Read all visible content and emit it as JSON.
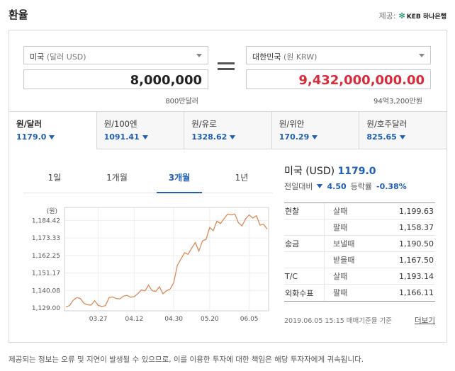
{
  "title": "환율",
  "provider": {
    "label": "제공:",
    "name": "KEB 하나은행"
  },
  "converter": {
    "from_currency": "미국",
    "from_unit": "(달러 USD)",
    "from_amount": "8,000,000",
    "from_hint": "800만달러",
    "to_currency": "대한민국",
    "to_unit": "(원 KRW)",
    "to_amount": "9,432,000,000.00",
    "to_hint": "94억3,200만원"
  },
  "rate_tabs": [
    {
      "label": "원/달러",
      "value": "1179.0"
    },
    {
      "label": "원/100엔",
      "value": "1091.41"
    },
    {
      "label": "원/유로",
      "value": "1328.62"
    },
    {
      "label": "원/위안",
      "value": "170.29"
    },
    {
      "label": "원/호주달러",
      "value": "825.65"
    }
  ],
  "period_tabs": [
    "1일",
    "1개월",
    "3개월",
    "1년"
  ],
  "active_period": "3개월",
  "info": {
    "country": "미국",
    "code": "(USD)",
    "rate": "1179.0",
    "change_label": "전일대비",
    "change": "4.50",
    "pct_label": "등락률",
    "pct": "-0.38%"
  },
  "rate_table": [
    {
      "category": "현찰",
      "kind": "살때",
      "value": "1,199.63"
    },
    {
      "category": "",
      "kind": "팔때",
      "value": "1,158.37"
    },
    {
      "category": "송금",
      "kind": "보낼때",
      "value": "1,190.50"
    },
    {
      "category": "",
      "kind": "받을때",
      "value": "1,167.50"
    },
    {
      "category": "T/C",
      "kind": "살때",
      "value": "1,193.14"
    },
    {
      "category": "외화수표",
      "kind": "팔때",
      "value": "1,166.11"
    }
  ],
  "timestamp": "2019.06.05 15:15 매매기준율 기준",
  "more_label": "더보기",
  "disclaimer": "제공되는 정보는 오류 및 지연이 발생될 수 있으므로, 이를 이용한 투자에 대한 책임은 해당 투자자에게 귀속됩니다.",
  "chart_data": {
    "type": "line",
    "unit_label": "(원)",
    "y_ticks": [
      "1,184.42",
      "1,173.33",
      "1,162.25",
      "1,151.17",
      "1,140.08",
      "1,129.00"
    ],
    "y_tick_values": [
      1184.42,
      1173.33,
      1162.25,
      1151.17,
      1140.08,
      1129.0
    ],
    "ylim": [
      1129.0,
      1190.0
    ],
    "x_tick_labels": [
      "03.27",
      "04.12",
      "04.30",
      "05.20",
      "06.05"
    ],
    "x_tick_index": [
      9,
      19,
      30,
      40,
      51
    ],
    "series": [
      {
        "color": "#d98a57",
        "values": [
          1129.8,
          1130.5,
          1133.8,
          1135.6,
          1135.0,
          1132.0,
          1131.0,
          1130.8,
          1133.6,
          1130.6,
          1130.0,
          1130.5,
          1135.5,
          1136.0,
          1135.0,
          1134.8,
          1136.5,
          1137.0,
          1135.8,
          1136.2,
          1138.0,
          1140.5,
          1139.8,
          1143.5,
          1140.0,
          1139.5,
          1142.5,
          1138.0,
          1140.0,
          1141.0,
          1145.0,
          1156.0,
          1160.0,
          1164.0,
          1163.0,
          1167.0,
          1170.5,
          1165.0,
          1171.5,
          1172.5,
          1180.0,
          1178.0,
          1184.0,
          1182.5,
          1185.5,
          1188.5,
          1188.0,
          1188.5,
          1183.0,
          1181.0,
          1185.5,
          1188.0,
          1186.0,
          1187.5,
          1181.5,
          1182.0,
          1179.0
        ]
      }
    ]
  }
}
